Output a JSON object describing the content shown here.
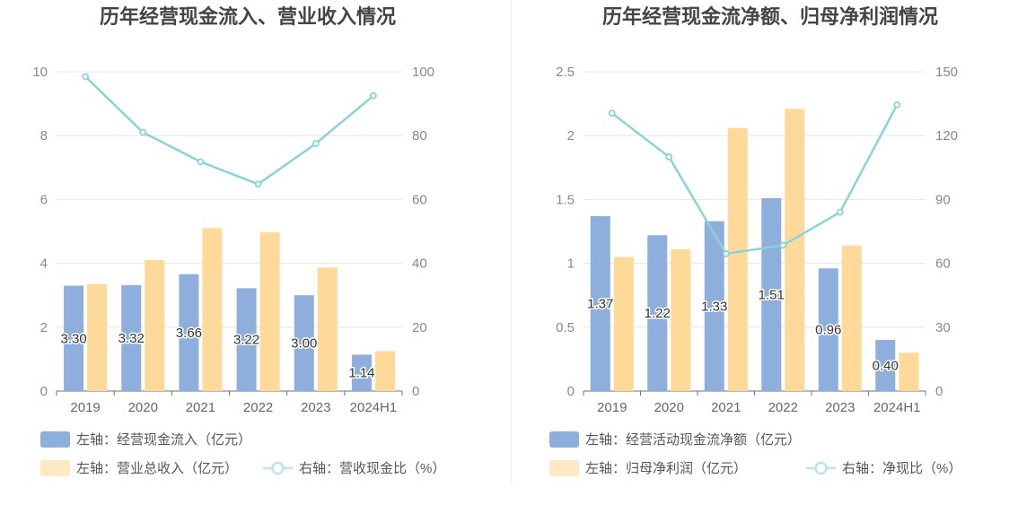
{
  "chart_data": [
    {
      "type": "bar+line",
      "title": "历年经营现金流入、营业收入情况",
      "categories": [
        "2019",
        "2020",
        "2021",
        "2022",
        "2023",
        "2024H1"
      ],
      "left_axis": {
        "min": 0,
        "max": 10,
        "ticks": [
          0,
          2,
          4,
          6,
          8,
          10
        ]
      },
      "right_axis": {
        "min": 0,
        "max": 100,
        "ticks": [
          0,
          20,
          40,
          60,
          80,
          100
        ]
      },
      "series": [
        {
          "name": "左轴：经营现金流入（亿元）",
          "kind": "bar",
          "axis": "left",
          "color": "#8eaedb",
          "values": [
            3.3,
            3.32,
            3.66,
            3.22,
            3.0,
            1.14
          ],
          "labels": [
            "3.30",
            "3.32",
            "3.66",
            "3.22",
            "3.00",
            "1.14"
          ]
        },
        {
          "name": "左轴：营业总收入（亿元）",
          "kind": "bar",
          "axis": "left",
          "color": "#ffd99a",
          "values": [
            3.35,
            4.1,
            5.1,
            4.97,
            3.87,
            1.25
          ]
        },
        {
          "name": "右轴：营收现金比（%）",
          "kind": "line",
          "axis": "right",
          "color": "#8ad4d8",
          "values": [
            98.5,
            81.0,
            71.8,
            64.8,
            77.5,
            92.5
          ]
        }
      ],
      "grid": true,
      "legend_position": "bottom-left"
    },
    {
      "type": "bar+line",
      "title": "历年经营现金流净额、归母净利润情况",
      "categories": [
        "2019",
        "2020",
        "2021",
        "2022",
        "2023",
        "2024H1"
      ],
      "left_axis": {
        "min": 0,
        "max": 2.5,
        "ticks": [
          0,
          0.5,
          1,
          1.5,
          2,
          2.5
        ]
      },
      "right_axis": {
        "min": 0,
        "max": 150,
        "ticks": [
          0,
          30,
          60,
          90,
          120,
          150
        ]
      },
      "series": [
        {
          "name": "左轴：经营活动现金流净额（亿元）",
          "kind": "bar",
          "axis": "left",
          "color": "#8eaedb",
          "values": [
            1.37,
            1.22,
            1.33,
            1.51,
            0.96,
            0.4
          ],
          "labels": [
            "1.37",
            "1.22",
            "1.33",
            "1.51",
            "0.96",
            "0.40"
          ]
        },
        {
          "name": "左轴：归母净利润（亿元）",
          "kind": "bar",
          "axis": "left",
          "color": "#ffd99a",
          "values": [
            1.05,
            1.11,
            2.06,
            2.21,
            1.14,
            0.3
          ]
        },
        {
          "name": "右轴：净现比（%）",
          "kind": "line",
          "axis": "right",
          "color": "#8ad4d8",
          "values": [
            130.5,
            110.0,
            64.5,
            68.5,
            84.0,
            134.5
          ]
        }
      ],
      "grid": true,
      "legend_position": "bottom-left"
    }
  ]
}
